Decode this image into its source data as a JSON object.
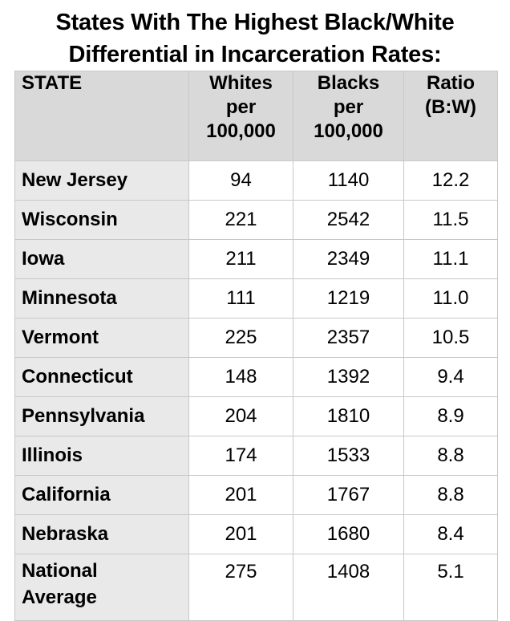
{
  "title": {
    "line1": "States With The Highest Black/White",
    "line2": "Differential in Incarceration Rates:"
  },
  "columns": {
    "state": "STATE",
    "whites": [
      "Whites",
      "per",
      "100,000"
    ],
    "blacks": [
      "Blacks",
      "per",
      "100,000"
    ],
    "ratio": [
      "Ratio",
      "(B:W)"
    ]
  },
  "rows": [
    {
      "state": "New Jersey",
      "whites": "94",
      "blacks": "1140",
      "ratio": "12.2"
    },
    {
      "state": "Wisconsin",
      "whites": "221",
      "blacks": "2542",
      "ratio": "11.5"
    },
    {
      "state": "Iowa",
      "whites": "211",
      "blacks": "2349",
      "ratio": "11.1"
    },
    {
      "state": "Minnesota",
      "whites": "111",
      "blacks": "1219",
      "ratio": "11.0"
    },
    {
      "state": "Vermont",
      "whites": "225",
      "blacks": "2357",
      "ratio": "10.5"
    },
    {
      "state": "Connecticut",
      "whites": "148",
      "blacks": "1392",
      "ratio": "9.4"
    },
    {
      "state": "Pennsylvania",
      "whites": "204",
      "blacks": "1810",
      "ratio": "8.9"
    },
    {
      "state": "Illinois",
      "whites": "174",
      "blacks": "1533",
      "ratio": "8.8"
    },
    {
      "state": "California",
      "whites": "201",
      "blacks": "1767",
      "ratio": "8.8"
    },
    {
      "state": "Nebraska",
      "whites": "201",
      "blacks": "1680",
      "ratio": "8.4"
    }
  ],
  "national_average": {
    "label": [
      "National",
      "Average"
    ],
    "whites": "275",
    "blacks": "1408",
    "ratio": "5.1"
  }
}
